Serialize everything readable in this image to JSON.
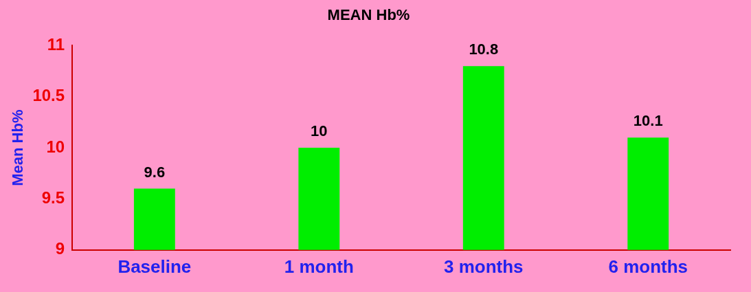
{
  "chart_data": {
    "type": "bar",
    "title": "MEAN Hb%",
    "ylabel": "Mean Hb%",
    "categories": [
      "Baseline",
      "1 month",
      "3 months",
      "6 months"
    ],
    "values": [
      9.6,
      10,
      10.8,
      10.1
    ],
    "color": "#00ee00",
    "ylim": [
      9,
      11
    ],
    "yticks": [
      9,
      9.5,
      10,
      10.5,
      11
    ],
    "grid": false,
    "legend": false,
    "data_labels": true
  }
}
